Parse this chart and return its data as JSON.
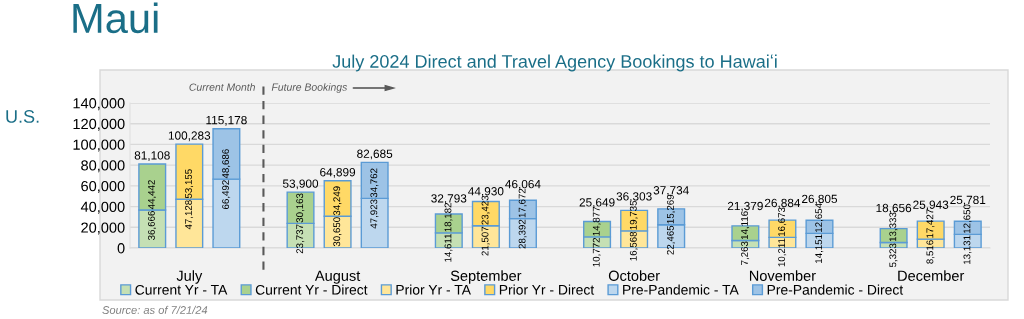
{
  "chart_data": {
    "type": "bar",
    "title": "Maui",
    "subtitle": "July 2024 Direct and Travel Agency Bookings to Hawaiʻi",
    "categories": [
      null,
      "July",
      null,
      null,
      null,
      "August",
      null,
      null,
      null,
      "September",
      null,
      null,
      null,
      "October",
      null,
      null,
      null,
      "November",
      null,
      null,
      null,
      "December",
      null
    ],
    "stacked": true,
    "series": [
      {
        "name": "Current Yr - TA",
        "color": "#c5e0b4",
        "values": [
          36666,
          null,
          null,
          null,
          23737,
          null,
          null,
          null,
          14611,
          null,
          null,
          null,
          10772,
          null,
          null,
          null,
          7263,
          null,
          null,
          null,
          5323,
          null,
          null
        ],
        "value_labels": [
          "36,666",
          null,
          null,
          null,
          "23,737",
          null,
          null,
          null,
          "14,611",
          null,
          null,
          null,
          "10,772",
          null,
          null,
          null,
          "7,263",
          null,
          null,
          null,
          "5,323",
          null,
          null
        ]
      },
      {
        "name": "Current Yr - Direct",
        "color": "#a9d18e",
        "values": [
          44442,
          null,
          null,
          null,
          30163,
          null,
          null,
          null,
          18182,
          null,
          null,
          null,
          14877,
          null,
          null,
          null,
          14116,
          null,
          null,
          null,
          13333,
          null,
          null
        ],
        "value_labels": [
          "44,442",
          null,
          null,
          null,
          "30,163",
          null,
          null,
          null,
          "18,182",
          null,
          null,
          null,
          "14,877",
          null,
          null,
          null,
          "14,116",
          null,
          null,
          null,
          "13,333",
          null,
          null
        ]
      },
      {
        "name": "Prior Yr - TA",
        "color": "#ffe699",
        "values": [
          null,
          47128,
          null,
          null,
          null,
          30650,
          null,
          null,
          null,
          21507,
          null,
          null,
          null,
          16568,
          null,
          null,
          null,
          10211,
          null,
          null,
          null,
          8516,
          null
        ],
        "value_labels": [
          null,
          "47,128",
          null,
          null,
          null,
          "30,650",
          null,
          null,
          null,
          "21,507",
          null,
          null,
          null,
          "16,568",
          null,
          null,
          null,
          "10,211",
          null,
          null,
          null,
          "8,516",
          null
        ]
      },
      {
        "name": "Prior Yr - Direct",
        "color": "#ffd966",
        "values": [
          null,
          53155,
          null,
          null,
          null,
          34249,
          null,
          null,
          null,
          23423,
          null,
          null,
          null,
          19735,
          null,
          null,
          null,
          16673,
          null,
          null,
          null,
          17427,
          null
        ],
        "value_labels": [
          null,
          "53,155",
          null,
          null,
          null,
          "34,249",
          null,
          null,
          null,
          "23,423",
          null,
          null,
          null,
          "19,735",
          null,
          null,
          null,
          "16,673",
          null,
          null,
          null,
          "17,427",
          null
        ]
      },
      {
        "name": "Pre-Pandemic - TA",
        "color": "#bdd7ee",
        "values": [
          null,
          null,
          66492,
          null,
          null,
          null,
          47923,
          null,
          null,
          null,
          28392,
          null,
          null,
          null,
          22465,
          null,
          null,
          null,
          14151,
          null,
          null,
          null,
          13131
        ],
        "value_labels": [
          null,
          null,
          "66,492",
          null,
          null,
          null,
          "47,923",
          null,
          null,
          null,
          "28,392",
          null,
          null,
          null,
          "22,465",
          null,
          null,
          null,
          "14,151",
          null,
          null,
          null,
          "13,131"
        ]
      },
      {
        "name": "Pre-Pandemic - Direct",
        "color": "#9dc3e6",
        "values": [
          null,
          null,
          48686,
          null,
          null,
          null,
          34762,
          null,
          null,
          null,
          17672,
          null,
          null,
          null,
          15269,
          null,
          null,
          null,
          12654,
          null,
          null,
          null,
          12650
        ],
        "value_labels": [
          null,
          null,
          "48,686",
          null,
          null,
          null,
          "34,762",
          null,
          null,
          null,
          "17,672",
          null,
          null,
          null,
          "15,269",
          null,
          null,
          null,
          "12,654",
          null,
          null,
          null,
          "12,650"
        ]
      }
    ],
    "totals": [
      "81,108",
      "100,283",
      "115,178",
      null,
      "53,900",
      "64,899",
      "82,685",
      null,
      "32,793",
      "44,930",
      "46,064",
      null,
      "25,649",
      "36,303",
      "37,734",
      null,
      "21,379",
      "26,884",
      "26,805",
      null,
      "18,656",
      "25,943",
      "25,781"
    ],
    "ylim": [
      0,
      140000
    ],
    "yticks": [
      {
        "value": 0,
        "label": "0"
      },
      {
        "value": 20000,
        "label": "20,000"
      },
      {
        "value": 40000,
        "label": "40,000"
      },
      {
        "value": 60000,
        "label": "60,000"
      },
      {
        "value": 80000,
        "label": "80,000"
      },
      {
        "value": 100000,
        "label": "100,000"
      },
      {
        "value": 120000,
        "label": "120,000"
      },
      {
        "value": 140000,
        "label": "140,000"
      }
    ],
    "grid": "y",
    "legend": "bottom",
    "annotations": [
      "U.S.",
      "Current Month",
      "Future Bookings",
      "Source: as of 7/21/24"
    ]
  }
}
